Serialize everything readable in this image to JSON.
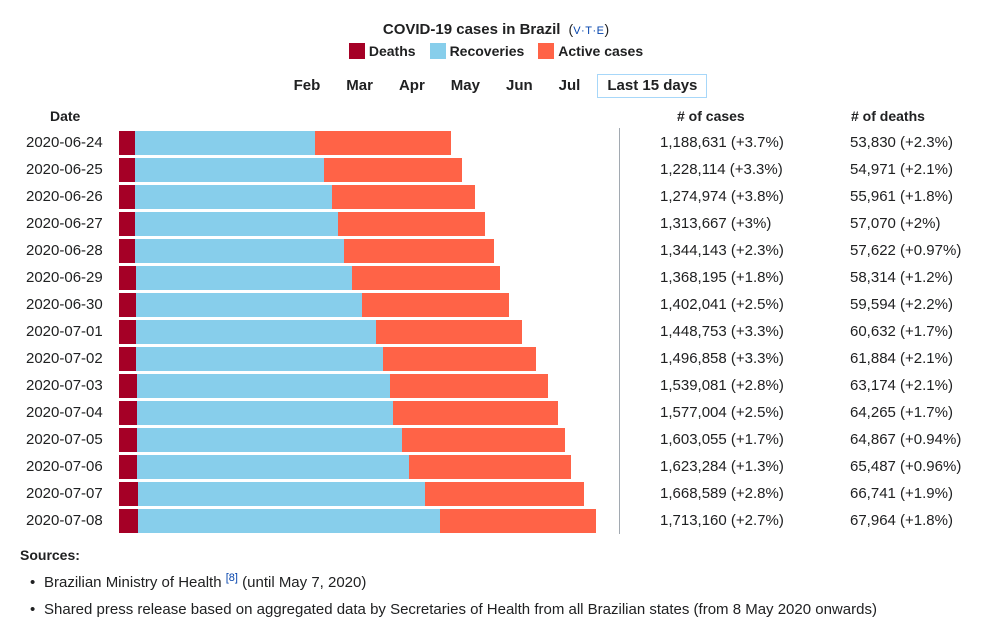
{
  "header": {
    "title": "COVID-19 cases in Brazil",
    "vte_open": "(",
    "vte_v": "V",
    "vte_t": "T",
    "vte_e": "E",
    "vte_sep": "·",
    "vte_close": ")"
  },
  "legend": [
    {
      "label": "Deaths",
      "color": "#a50026"
    },
    {
      "label": "Recoveries",
      "color": "#87ceeb"
    },
    {
      "label": "Active cases",
      "color": "#ff6347"
    }
  ],
  "months": [
    "Feb",
    "Mar",
    "Apr",
    "May",
    "Jun",
    "Jul",
    "Last 15 days"
  ],
  "active_month": "Last 15 days",
  "columns": {
    "date": "Date",
    "cases": "# of cases",
    "deaths": "# of deaths"
  },
  "chart_data": {
    "type": "bar",
    "stacked": true,
    "orientation": "horizontal",
    "title": "COVID-19 cases in Brazil",
    "categories": [
      "2020-06-24",
      "2020-06-25",
      "2020-06-26",
      "2020-06-27",
      "2020-06-28",
      "2020-06-29",
      "2020-06-30",
      "2020-07-01",
      "2020-07-02",
      "2020-07-03",
      "2020-07-04",
      "2020-07-05",
      "2020-07-06",
      "2020-07-07",
      "2020-07-08"
    ],
    "series": [
      {
        "name": "Deaths",
        "color": "#a50026",
        "values": [
          53830,
          54971,
          55961,
          57070,
          57622,
          58314,
          59594,
          60632,
          61884,
          63174,
          64265,
          64867,
          65487,
          66741,
          67964
        ]
      },
      {
        "name": "Recoveries",
        "color": "#87ceeb",
        "values": [
          646000,
          678000,
          707000,
          727000,
          748000,
          776000,
          815000,
          862000,
          888000,
          910000,
          921000,
          952000,
          977000,
          1031000,
          1086000
        ]
      },
      {
        "name": "Active cases",
        "color": "#ff6347",
        "values": [
          488801,
          495143,
          512013,
          529597,
          538521,
          533881,
          527447,
          526121,
          546974,
          565907,
          591739,
          586188,
          580797,
          570848,
          559196
        ]
      }
    ],
    "xlim": [
      0,
      1713160
    ]
  },
  "rows": [
    {
      "date": "2020-06-24",
      "cases": "1,188,631 (+3.7%)",
      "deaths": "53,830 (+2.3%)"
    },
    {
      "date": "2020-06-25",
      "cases": "1,228,114 (+3.3%)",
      "deaths": "54,971 (+2.1%)"
    },
    {
      "date": "2020-06-26",
      "cases": "1,274,974 (+3.8%)",
      "deaths": "55,961 (+1.8%)"
    },
    {
      "date": "2020-06-27",
      "cases": "1,313,667 (+3%)",
      "deaths": "57,070 (+2%)"
    },
    {
      "date": "2020-06-28",
      "cases": "1,344,143 (+2.3%)",
      "deaths": "57,622 (+0.97%)"
    },
    {
      "date": "2020-06-29",
      "cases": "1,368,195 (+1.8%)",
      "deaths": "58,314 (+1.2%)"
    },
    {
      "date": "2020-06-30",
      "cases": "1,402,041 (+2.5%)",
      "deaths": "59,594 (+2.2%)"
    },
    {
      "date": "2020-07-01",
      "cases": "1,448,753 (+3.3%)",
      "deaths": "60,632 (+1.7%)"
    },
    {
      "date": "2020-07-02",
      "cases": "1,496,858 (+3.3%)",
      "deaths": "61,884 (+2.1%)"
    },
    {
      "date": "2020-07-03",
      "cases": "1,539,081 (+2.8%)",
      "deaths": "63,174 (+2.1%)"
    },
    {
      "date": "2020-07-04",
      "cases": "1,577,004 (+2.5%)",
      "deaths": "64,265 (+1.7%)"
    },
    {
      "date": "2020-07-05",
      "cases": "1,603,055 (+1.7%)",
      "deaths": "64,867 (+0.94%)"
    },
    {
      "date": "2020-07-06",
      "cases": "1,623,284 (+1.3%)",
      "deaths": "65,487 (+0.96%)"
    },
    {
      "date": "2020-07-07",
      "cases": "1,668,589 (+2.8%)",
      "deaths": "66,741 (+1.9%)"
    },
    {
      "date": "2020-07-08",
      "cases": "1,713,160 (+2.7%)",
      "deaths": "67,964 (+1.8%)"
    }
  ],
  "sources": {
    "title": "Sources:",
    "items": [
      {
        "text": "Brazilian Ministry of Health",
        "ref": "[8]",
        "suffix": " (until May 7, 2020)"
      },
      {
        "text": "Shared press release based on aggregated data by Secretaries of Health from all Brazilian states (from 8 May 2020 onwards)"
      }
    ]
  }
}
